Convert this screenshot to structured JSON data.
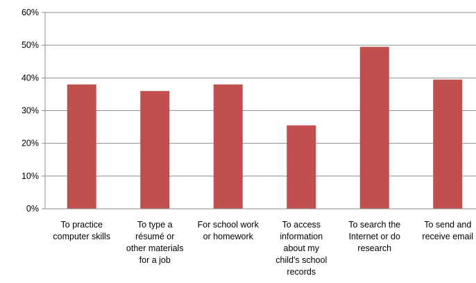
{
  "chart_data": {
    "type": "bar",
    "categories": [
      [
        "To practice",
        "computer skills"
      ],
      [
        "To type a",
        "résumé or",
        "other materials",
        "for a job"
      ],
      [
        "For school work",
        "or homework"
      ],
      [
        "To access",
        "information",
        "about my",
        "child's school",
        "records"
      ],
      [
        "To search the",
        "Internet or do",
        "research"
      ],
      [
        "To send and",
        "receive email"
      ]
    ],
    "values": [
      38,
      36,
      38,
      25.5,
      49.5,
      39.5
    ],
    "ylim": [
      0,
      60
    ],
    "yticks": [
      0,
      10,
      20,
      30,
      40,
      50,
      60
    ],
    "ytick_suffix": "%",
    "bar_color": "#C0504D",
    "grid": true,
    "title": "",
    "xlabel": "",
    "ylabel": ""
  }
}
